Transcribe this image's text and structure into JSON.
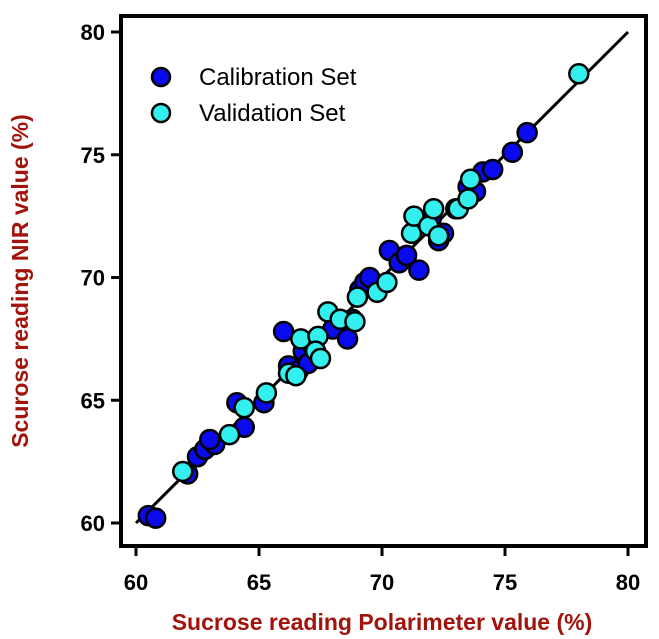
{
  "chart_data": {
    "type": "scatter",
    "xlabel": "Sucrose reading Polarimeter value (%)",
    "ylabel": "Scurose reading NIR value (%)",
    "xlim": [
      60,
      80
    ],
    "ylim": [
      60,
      80
    ],
    "xticks": [
      "60",
      "65",
      "70",
      "75",
      "80"
    ],
    "yticks": [
      "60",
      "65",
      "70",
      "75",
      "80"
    ],
    "grid": false,
    "legend_position": "top-left",
    "fit_line": {
      "x": [
        60,
        80
      ],
      "y": [
        60,
        80
      ],
      "color": "#000000"
    },
    "series": [
      {
        "name": "Calibration Set",
        "color": "#0a0aee",
        "points": [
          [
            60.5,
            60.3
          ],
          [
            60.8,
            60.2
          ],
          [
            62.1,
            62.0
          ],
          [
            62.5,
            62.7
          ],
          [
            62.8,
            63.0
          ],
          [
            63.2,
            63.2
          ],
          [
            63.0,
            63.4
          ],
          [
            64.1,
            64.9
          ],
          [
            64.4,
            63.9
          ],
          [
            65.2,
            64.9
          ],
          [
            66.0,
            67.8
          ],
          [
            66.2,
            66.4
          ],
          [
            66.6,
            66.2
          ],
          [
            66.8,
            67.0
          ],
          [
            67.0,
            66.5
          ],
          [
            67.2,
            67.2
          ],
          [
            68.0,
            67.9
          ],
          [
            68.6,
            67.5
          ],
          [
            68.8,
            68.3
          ],
          [
            69.1,
            69.5
          ],
          [
            69.3,
            69.8
          ],
          [
            69.5,
            70.0
          ],
          [
            70.3,
            71.1
          ],
          [
            70.7,
            70.6
          ],
          [
            71.0,
            70.9
          ],
          [
            71.5,
            70.3
          ],
          [
            72.0,
            72.4
          ],
          [
            72.3,
            71.5
          ],
          [
            72.5,
            71.8
          ],
          [
            73.0,
            72.8
          ],
          [
            73.5,
            73.7
          ],
          [
            73.8,
            73.5
          ],
          [
            74.1,
            74.3
          ],
          [
            74.5,
            74.4
          ],
          [
            75.3,
            75.1
          ],
          [
            75.9,
            75.9
          ]
        ]
      },
      {
        "name": "Validation Set",
        "color": "#33f0ee",
        "points": [
          [
            61.9,
            62.1
          ],
          [
            63.8,
            63.6
          ],
          [
            64.4,
            64.7
          ],
          [
            65.3,
            65.3
          ],
          [
            66.2,
            66.1
          ],
          [
            66.5,
            66.0
          ],
          [
            66.7,
            67.5
          ],
          [
            67.4,
            67.6
          ],
          [
            67.3,
            67.0
          ],
          [
            67.5,
            66.7
          ],
          [
            67.8,
            68.6
          ],
          [
            68.3,
            68.3
          ],
          [
            68.9,
            68.2
          ],
          [
            69.0,
            69.2
          ],
          [
            69.8,
            69.4
          ],
          [
            70.2,
            69.8
          ],
          [
            71.2,
            71.8
          ],
          [
            71.3,
            72.5
          ],
          [
            71.9,
            72.1
          ],
          [
            72.1,
            72.8
          ],
          [
            72.3,
            71.7
          ],
          [
            73.1,
            72.8
          ],
          [
            73.5,
            73.2
          ],
          [
            73.6,
            74.0
          ],
          [
            78.0,
            78.3
          ]
        ]
      }
    ]
  }
}
